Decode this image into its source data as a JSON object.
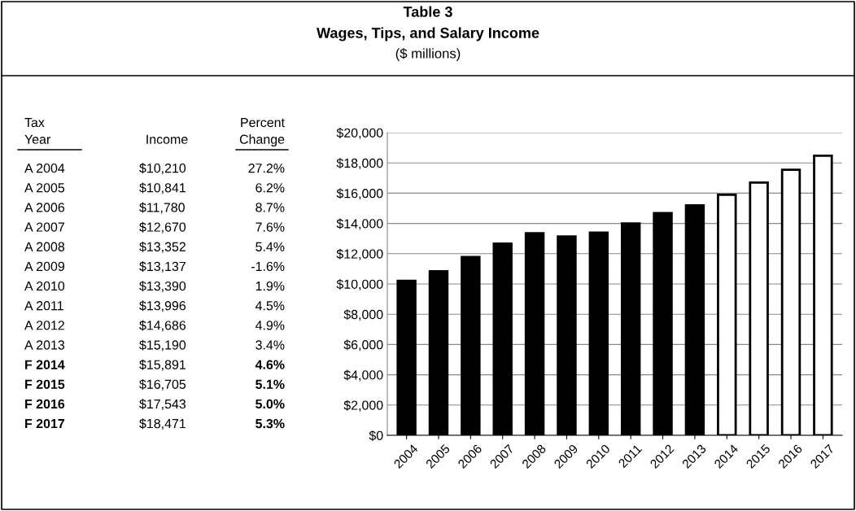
{
  "chart_data": [
    {
      "type": "other",
      "annotations": [
        "Tax Year",
        "Income",
        "Percent Change",
        "A 2004",
        "$10,210",
        "27.2%",
        "A 2005",
        "$10,841",
        "6.2%",
        "A 2006",
        "$11,780",
        "8.7%",
        "A 2007",
        "$12,670",
        "7.6%",
        "A 2008",
        "$13,352",
        "5.4%",
        "A 2009",
        "$13,137",
        "-1.6%",
        "A 2010",
        "$13,390",
        "1.9%",
        "A 2011",
        "$13,996",
        "4.5%",
        "A 2012",
        "$14,686",
        "4.9%",
        "A 2013",
        "$15,190",
        "3.4%",
        "F 2014",
        "$15,891",
        "4.6%",
        "F 2015",
        "$16,705",
        "5.1%",
        "F 2016",
        "$17,543",
        "5.0%",
        "F 2017",
        "$18,471",
        "5.3%"
      ]
    },
    {
      "type": "bar",
      "title": "Table 3",
      "subtitle": "Wages, Tips, and Salary Income",
      "ylabel": "($ millions)",
      "categories": [
        "2004",
        "2005",
        "2006",
        "2007",
        "2008",
        "2009",
        "2010",
        "2011",
        "2012",
        "2013",
        "2014",
        "2015",
        "2016",
        "2017"
      ],
      "values": [
        10210,
        10841,
        11780,
        12670,
        13352,
        13137,
        13390,
        13996,
        14686,
        15190,
        15891,
        16705,
        17543,
        18471
      ],
      "colors": [
        "#000000",
        "#000000",
        "#000000",
        "#000000",
        "#000000",
        "#000000",
        "#000000",
        "#000000",
        "#000000",
        "#000000",
        "#ffffff",
        "#ffffff",
        "#ffffff",
        "#ffffff"
      ],
      "ylim": [
        0,
        20000
      ],
      "yticks": [
        {
          "value": 0,
          "label": "$0"
        },
        {
          "value": 2000,
          "label": "$2,000"
        },
        {
          "value": 4000,
          "label": "$4,000"
        },
        {
          "value": 6000,
          "label": "$6,000"
        },
        {
          "value": 8000,
          "label": "$8,000"
        },
        {
          "value": 10000,
          "label": "$10,000"
        },
        {
          "value": 12000,
          "label": "$12,000"
        },
        {
          "value": 14000,
          "label": "$14,000"
        },
        {
          "value": 16000,
          "label": "$16,000"
        },
        {
          "value": 18000,
          "label": "$18,000"
        },
        {
          "value": 20000,
          "label": "$20,000"
        }
      ],
      "grid": "y"
    }
  ]
}
